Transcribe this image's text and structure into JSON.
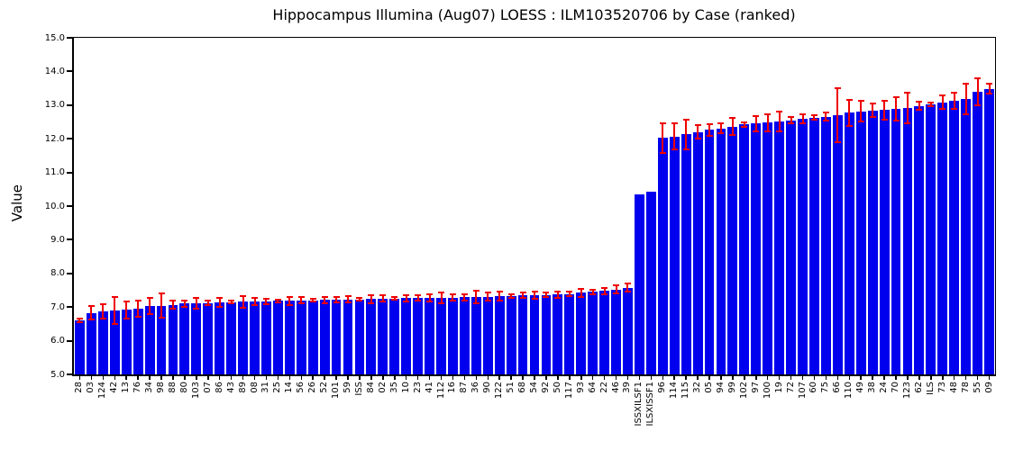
{
  "chart_data": {
    "type": "bar",
    "title": "Hippocampus Illumina (Aug07) LOESS : ILM103520706 by Case (ranked)",
    "ylabel": "Value",
    "xlabel": "",
    "ylim": [
      5.0,
      15.0
    ],
    "ytick_step": 1.0,
    "yticks": [
      15.0,
      14.0,
      13.0,
      12.0,
      11.0,
      10.0,
      9.0,
      8.0,
      7.0,
      6.0,
      5.0
    ],
    "grid": false,
    "legend": null,
    "bar_color": "#0000ee",
    "error_bar_color": "#ee0000",
    "axis_color": "#000000",
    "categories": [
      "28",
      "03",
      "124",
      "42",
      "13",
      "76",
      "34",
      "98",
      "88",
      "80",
      "103",
      "07",
      "86",
      "43",
      "89",
      "08",
      "31",
      "25",
      "14",
      "56",
      "26",
      "52",
      "101",
      "59",
      "ISS",
      "84",
      "02",
      "35",
      "10",
      "23",
      "41",
      "112",
      "16",
      "87",
      "36",
      "90",
      "122",
      "51",
      "68",
      "54",
      "92",
      "50",
      "117",
      "93",
      "64",
      "22",
      "46",
      "39",
      "ISSXILSF1",
      "ILSXISSF1",
      "96",
      "114",
      "115",
      "32",
      "05",
      "94",
      "99",
      "102",
      "97",
      "100",
      "19",
      "72",
      "107",
      "60",
      "75",
      "66",
      "110",
      "49",
      "38",
      "24",
      "70",
      "123",
      "62",
      "ILS",
      "73",
      "48",
      "78",
      "55",
      "09"
    ],
    "values": [
      6.61,
      6.83,
      6.88,
      6.9,
      6.92,
      6.95,
      7.02,
      7.04,
      7.06,
      7.1,
      7.11,
      7.12,
      7.14,
      7.15,
      7.16,
      7.17,
      7.17,
      7.18,
      7.19,
      7.2,
      7.2,
      7.21,
      7.22,
      7.23,
      7.23,
      7.24,
      7.25,
      7.25,
      7.26,
      7.27,
      7.27,
      7.28,
      7.28,
      7.29,
      7.3,
      7.31,
      7.32,
      7.33,
      7.34,
      7.35,
      7.36,
      7.37,
      7.39,
      7.42,
      7.45,
      7.48,
      7.52,
      7.58,
      10.35,
      10.43,
      12.02,
      12.07,
      12.13,
      12.2,
      12.26,
      12.31,
      12.36,
      12.42,
      12.45,
      12.48,
      12.52,
      12.55,
      12.6,
      12.63,
      12.66,
      12.7,
      12.77,
      12.82,
      12.84,
      12.86,
      12.89,
      12.92,
      12.97,
      13.02,
      13.08,
      13.13,
      13.19,
      13.4,
      13.48
    ],
    "errors": [
      0.06,
      0.2,
      0.21,
      0.4,
      0.25,
      0.23,
      0.24,
      0.36,
      0.12,
      0.1,
      0.15,
      0.07,
      0.14,
      0.04,
      0.17,
      0.1,
      0.08,
      0.05,
      0.12,
      0.1,
      0.04,
      0.09,
      0.07,
      0.1,
      0.05,
      0.12,
      0.09,
      0.04,
      0.09,
      0.08,
      0.1,
      0.16,
      0.1,
      0.1,
      0.19,
      0.12,
      0.13,
      0.06,
      0.08,
      0.1,
      0.06,
      0.09,
      0.07,
      0.11,
      0.07,
      0.09,
      0.12,
      0.12,
      0.0,
      0.0,
      0.45,
      0.38,
      0.45,
      0.2,
      0.18,
      0.15,
      0.25,
      0.06,
      0.22,
      0.25,
      0.3,
      0.1,
      0.13,
      0.07,
      0.12,
      0.8,
      0.38,
      0.3,
      0.2,
      0.28,
      0.35,
      0.45,
      0.12,
      0.06,
      0.2,
      0.25,
      0.45,
      0.4,
      0.15
    ]
  }
}
